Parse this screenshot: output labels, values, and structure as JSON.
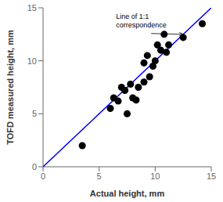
{
  "chart_data": {
    "type": "scatter",
    "xlabel": "Actual height, mm",
    "ylabel": "TOFD measured height, mm",
    "xlim": [
      0,
      15
    ],
    "ylim": [
      0,
      15
    ],
    "xticks": [
      0,
      5,
      10,
      15
    ],
    "yticks": [
      0,
      5,
      10,
      15
    ],
    "grid": false,
    "series": [
      {
        "type": "line",
        "color": "#0000ff",
        "x": [
          0,
          15
        ],
        "values": [
          0,
          15
        ]
      },
      {
        "type": "scatter",
        "color": "#000000",
        "x": [
          3.5,
          6.0,
          6.3,
          6.7,
          7.0,
          7.3,
          7.5,
          7.8,
          8.0,
          8.3,
          8.5,
          9.0,
          9.0,
          9.3,
          9.5,
          9.8,
          10.0,
          10.2,
          10.5,
          10.8,
          11.0,
          11.2,
          12.5,
          14.2
        ],
        "values": [
          2.0,
          5.5,
          6.5,
          6.2,
          7.5,
          7.2,
          5.0,
          7.8,
          6.5,
          6.3,
          7.5,
          8.0,
          9.8,
          10.5,
          8.5,
          9.5,
          10.0,
          11.5,
          11.0,
          12.5,
          10.8,
          11.5,
          12.2,
          13.5
        ]
      }
    ],
    "annotations": [
      {
        "text": "Line of 1:1\ncorrespondence",
        "x": 6.5,
        "y": 14.5,
        "arrow_x": 12.5,
        "arrow_y": 12.5
      }
    ]
  }
}
